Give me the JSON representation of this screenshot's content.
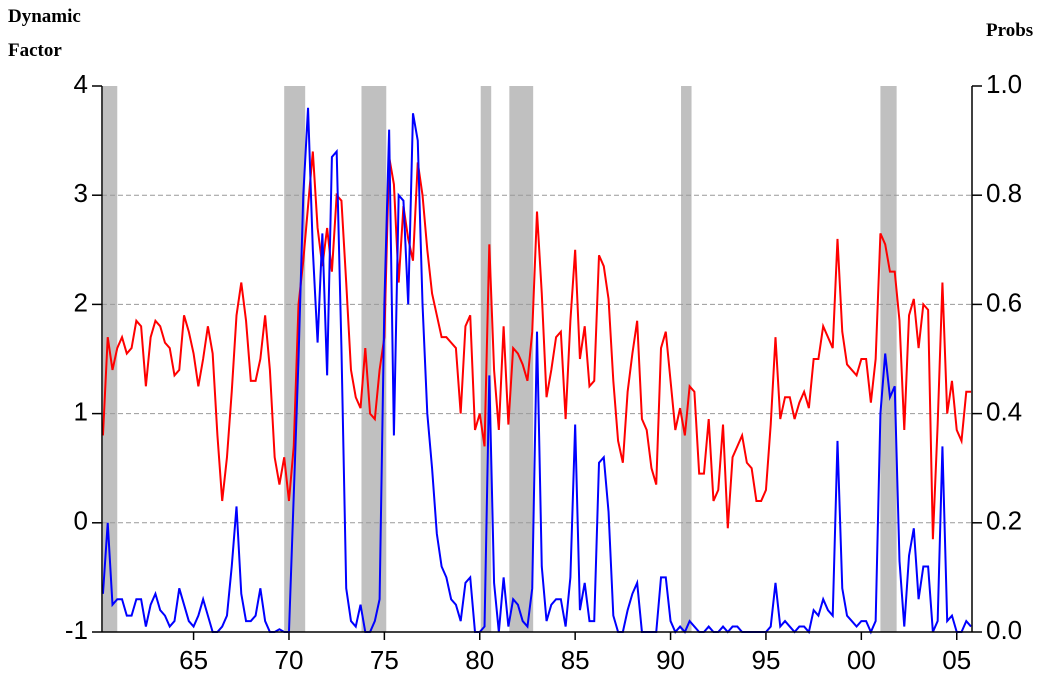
{
  "chart_data": {
    "type": "line",
    "ylabel": [
      "Dynamic",
      "Factor"
    ],
    "y2label": "Probs",
    "xlim": [
      1960.2,
      2005.8
    ],
    "xticks": [
      {
        "value": 1965,
        "label": "65"
      },
      {
        "value": 1970,
        "label": "70"
      },
      {
        "value": 1975,
        "label": "75"
      },
      {
        "value": 1980,
        "label": "80"
      },
      {
        "value": 1985,
        "label": "85"
      },
      {
        "value": 1990,
        "label": "90"
      },
      {
        "value": 1995,
        "label": "95"
      },
      {
        "value": 2000,
        "label": "00"
      },
      {
        "value": 2005,
        "label": "05"
      }
    ],
    "ylim": [
      -1,
      4
    ],
    "yticks": [
      -1,
      0,
      1,
      2,
      3,
      4
    ],
    "y2lim": [
      0,
      1
    ],
    "y2ticks": [
      {
        "value": 0,
        "label": "0.0"
      },
      0.2,
      0.4,
      0.6,
      0.8,
      {
        "value": 1,
        "label": "1.0"
      }
    ],
    "grid": true,
    "shading_color": "#c0c0c0",
    "shading": [
      [
        1960.25,
        1961.0
      ],
      [
        1969.75,
        1970.85
      ],
      [
        1973.8,
        1975.1
      ],
      [
        1980.05,
        1980.6
      ],
      [
        1981.55,
        1982.8
      ],
      [
        1990.55,
        1991.1
      ],
      [
        2001.0,
        2001.85
      ]
    ],
    "x": [
      1960.25,
      1960.5,
      1960.75,
      1961,
      1961.25,
      1961.5,
      1961.75,
      1962,
      1962.25,
      1962.5,
      1962.75,
      1963,
      1963.25,
      1963.5,
      1963.75,
      1964,
      1964.25,
      1964.5,
      1964.75,
      1965,
      1965.25,
      1965.5,
      1965.75,
      1966,
      1966.25,
      1966.5,
      1966.75,
      1967,
      1967.25,
      1967.5,
      1967.75,
      1968,
      1968.25,
      1968.5,
      1968.75,
      1969,
      1969.25,
      1969.5,
      1969.75,
      1970,
      1970.25,
      1970.5,
      1970.75,
      1971,
      1971.25,
      1971.5,
      1971.75,
      1972,
      1972.25,
      1972.5,
      1972.75,
      1973,
      1973.25,
      1973.5,
      1973.75,
      1974,
      1974.25,
      1974.5,
      1974.75,
      1975,
      1975.25,
      1975.5,
      1975.75,
      1976,
      1976.25,
      1976.5,
      1976.75,
      1977,
      1977.25,
      1977.5,
      1977.75,
      1978,
      1978.25,
      1978.5,
      1978.75,
      1979,
      1979.25,
      1979.5,
      1979.75,
      1980,
      1980.25,
      1980.5,
      1980.75,
      1981,
      1981.25,
      1981.5,
      1981.75,
      1982,
      1982.25,
      1982.5,
      1982.75,
      1983,
      1983.25,
      1983.5,
      1983.75,
      1984,
      1984.25,
      1984.5,
      1984.75,
      1985,
      1985.25,
      1985.5,
      1985.75,
      1986,
      1986.25,
      1986.5,
      1986.75,
      1987,
      1987.25,
      1987.5,
      1987.75,
      1988,
      1988.25,
      1988.5,
      1988.75,
      1989,
      1989.25,
      1989.5,
      1989.75,
      1990,
      1990.25,
      1990.5,
      1990.75,
      1991,
      1991.25,
      1991.5,
      1991.75,
      1992,
      1992.25,
      1992.5,
      1992.75,
      1993,
      1993.25,
      1993.5,
      1993.75,
      1994,
      1994.25,
      1994.5,
      1994.75,
      1995,
      1995.25,
      1995.5,
      1995.75,
      1996,
      1996.25,
      1996.5,
      1996.75,
      1997,
      1997.25,
      1997.5,
      1997.75,
      1998,
      1998.25,
      1998.5,
      1998.75,
      1999,
      1999.25,
      1999.5,
      1999.75,
      2000,
      2000.25,
      2000.5,
      2000.75,
      2001,
      2001.25,
      2001.5,
      2001.75,
      2002,
      2002.25,
      2002.5,
      2002.75,
      2003,
      2003.25,
      2003.5,
      2003.75,
      2004,
      2004.25,
      2004.5,
      2004.75,
      2005,
      2005.25,
      2005.5,
      2005.75
    ],
    "series": [
      {
        "color": "#ff0000",
        "axis": "y",
        "values": [
          0.8,
          1.7,
          1.4,
          1.6,
          1.7,
          1.55,
          1.6,
          1.85,
          1.8,
          1.25,
          1.7,
          1.85,
          1.8,
          1.65,
          1.6,
          1.35,
          1.4,
          1.9,
          1.75,
          1.55,
          1.25,
          1.5,
          1.8,
          1.55,
          0.8,
          0.2,
          0.6,
          1.2,
          1.9,
          2.2,
          1.85,
          1.3,
          1.3,
          1.5,
          1.9,
          1.4,
          0.6,
          0.35,
          0.6,
          0.2,
          0.7,
          2.0,
          2.4,
          2.9,
          3.4,
          2.7,
          2.35,
          2.7,
          2.3,
          3.0,
          2.95,
          2.2,
          1.4,
          1.15,
          1.05,
          1.6,
          1.0,
          0.95,
          1.4,
          1.7,
          3.35,
          3.1,
          2.2,
          2.9,
          2.6,
          2.4,
          3.3,
          3.0,
          2.5,
          2.1,
          1.9,
          1.7,
          1.7,
          1.65,
          1.6,
          1.0,
          1.8,
          1.9,
          0.85,
          1.0,
          0.7,
          2.55,
          1.4,
          0.85,
          1.8,
          0.9,
          1.6,
          1.55,
          1.45,
          1.3,
          1.75,
          2.85,
          2.1,
          1.15,
          1.4,
          1.7,
          1.75,
          0.95,
          1.85,
          2.5,
          1.5,
          1.8,
          1.25,
          1.3,
          2.45,
          2.35,
          2.05,
          1.3,
          0.75,
          0.55,
          1.2,
          1.55,
          1.85,
          0.95,
          0.85,
          0.5,
          0.35,
          1.6,
          1.75,
          1.3,
          0.85,
          1.05,
          0.8,
          1.25,
          1.2,
          0.45,
          0.45,
          0.95,
          0.2,
          0.3,
          0.9,
          -0.05,
          0.6,
          0.7,
          0.8,
          0.55,
          0.5,
          0.2,
          0.2,
          0.3,
          0.9,
          1.7,
          0.95,
          1.15,
          1.15,
          0.95,
          1.1,
          1.2,
          1.05,
          1.5,
          1.5,
          1.8,
          1.7,
          1.6,
          2.6,
          1.75,
          1.45,
          1.4,
          1.35,
          1.5,
          1.5,
          1.1,
          1.5,
          2.65,
          2.55,
          2.3,
          2.3,
          1.85,
          0.85,
          1.9,
          2.05,
          1.6,
          2.0,
          1.95,
          -0.15,
          0.9,
          2.2,
          1.0,
          1.3,
          0.85,
          0.75,
          1.2,
          1.2
        ]
      },
      {
        "color": "#0000ff",
        "axis": "y2",
        "values": [
          0.07,
          0.2,
          0.05,
          0.06,
          0.06,
          0.03,
          0.03,
          0.06,
          0.06,
          0.01,
          0.05,
          0.07,
          0.04,
          0.03,
          0.01,
          0.02,
          0.08,
          0.05,
          0.02,
          0.01,
          0.03,
          0.06,
          0.03,
          0.0,
          0.0,
          0.01,
          0.03,
          0.12,
          0.23,
          0.07,
          0.02,
          0.02,
          0.03,
          0.08,
          0.02,
          0.0,
          0.0,
          0.005,
          0.0,
          0.0,
          0.25,
          0.5,
          0.8,
          0.96,
          0.7,
          0.53,
          0.73,
          0.47,
          0.87,
          0.88,
          0.52,
          0.08,
          0.02,
          0.01,
          0.05,
          0.0,
          0.0,
          0.02,
          0.06,
          0.6,
          0.92,
          0.36,
          0.8,
          0.79,
          0.6,
          0.95,
          0.9,
          0.6,
          0.4,
          0.3,
          0.18,
          0.12,
          0.1,
          0.06,
          0.05,
          0.02,
          0.09,
          0.1,
          0.0,
          0.0,
          0.01,
          0.47,
          0.09,
          0.0,
          0.1,
          0.01,
          0.06,
          0.05,
          0.02,
          0.01,
          0.08,
          0.55,
          0.12,
          0.02,
          0.05,
          0.06,
          0.06,
          0.01,
          0.1,
          0.38,
          0.04,
          0.09,
          0.02,
          0.02,
          0.31,
          0.32,
          0.22,
          0.03,
          0.0,
          0.0,
          0.04,
          0.07,
          0.09,
          0.0,
          0.0,
          0.0,
          0.0,
          0.1,
          0.1,
          0.02,
          0.0,
          0.01,
          0.0,
          0.02,
          0.01,
          0.0,
          0.0,
          0.01,
          0.0,
          0.0,
          0.01,
          0.0,
          0.01,
          0.01,
          0.0,
          0.0,
          0.0,
          0.0,
          0.0,
          0.0,
          0.01,
          0.09,
          0.01,
          0.02,
          0.01,
          0.0,
          0.01,
          0.01,
          0.0,
          0.04,
          0.03,
          0.06,
          0.04,
          0.03,
          0.35,
          0.08,
          0.03,
          0.02,
          0.01,
          0.02,
          0.02,
          0.0,
          0.02,
          0.4,
          0.51,
          0.43,
          0.45,
          0.13,
          0.01,
          0.14,
          0.19,
          0.06,
          0.12,
          0.12,
          0.0,
          0.02,
          0.34,
          0.02,
          0.03,
          0.0,
          0.0,
          0.02,
          0.01
        ]
      }
    ]
  }
}
